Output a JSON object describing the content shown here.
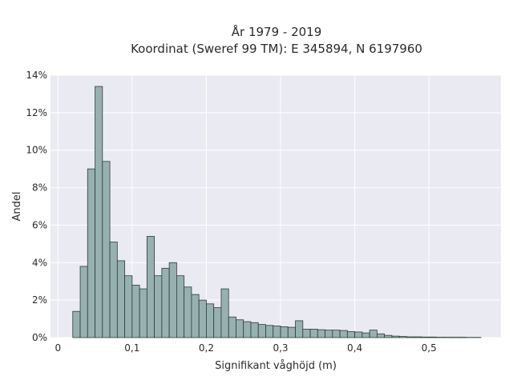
{
  "chart_data": {
    "type": "bar",
    "title": [
      "År 1979 - 2019",
      "Koordinat (Sweref 99 TM): E 345894, N 6197960"
    ],
    "xlabel": "Signifikant våghöjd (m)",
    "ylabel": "Andel",
    "xlim": [
      -0.01,
      0.597
    ],
    "ylim": [
      0,
      14
    ],
    "x_ticks": [
      0,
      0.1,
      0.2,
      0.3,
      0.4,
      0.5
    ],
    "x_tick_labels": [
      "0",
      "0,1",
      "0,2",
      "0,3",
      "0,4",
      "0,5"
    ],
    "y_ticks": [
      0,
      2,
      4,
      6,
      8,
      10,
      12,
      14
    ],
    "y_tick_labels": [
      "0%",
      "2%",
      "4%",
      "6%",
      "8%",
      "10%",
      "12%",
      "14%"
    ],
    "grid": true,
    "colors": {
      "bar_fill": "#96b1b0",
      "bar_edge": "#2f3b3b",
      "plot_bg": "#eaeaf2",
      "grid": "#ffffff"
    },
    "bin_start": 0.02,
    "bin_width": 0.01,
    "values": [
      1.4,
      3.8,
      9.0,
      13.4,
      9.4,
      5.1,
      4.1,
      3.3,
      2.8,
      2.6,
      5.4,
      3.3,
      3.7,
      4.0,
      3.3,
      2.7,
      2.3,
      2.0,
      1.8,
      1.6,
      2.6,
      1.1,
      0.95,
      0.85,
      0.8,
      0.7,
      0.65,
      0.62,
      0.58,
      0.55,
      0.9,
      0.45,
      0.45,
      0.42,
      0.4,
      0.4,
      0.38,
      0.32,
      0.3,
      0.25,
      0.4,
      0.2,
      0.12,
      0.08,
      0.06,
      0.04,
      0.04,
      0.03,
      0.03,
      0.02,
      0.02,
      0.02,
      0.02,
      0.01,
      0.01
    ]
  }
}
